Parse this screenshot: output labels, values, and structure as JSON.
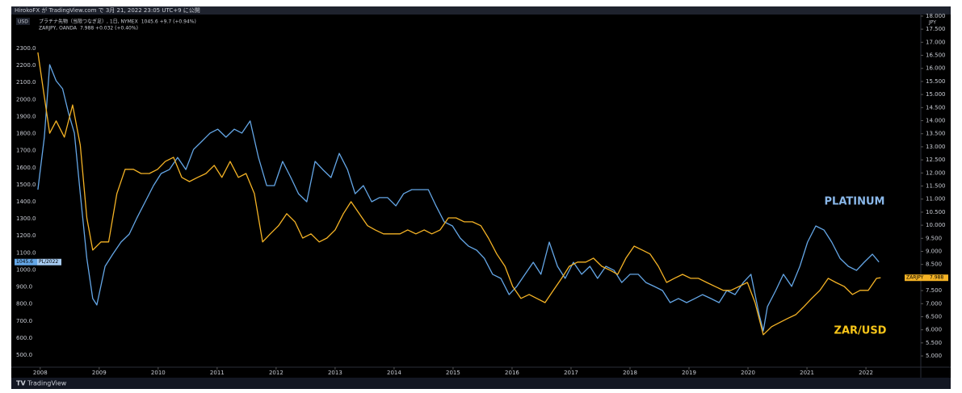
{
  "header": "HirokoFX が TradingView.com で 3月 21, 2022 23:05 UTC+9 に公開",
  "footer": "TradingView",
  "chart_data": {
    "type": "line",
    "y_unit": "USD",
    "y2_unit": "JPY",
    "annotations": [
      {
        "text": "PLATINUM",
        "series": 0
      },
      {
        "text": "ZAR/USD",
        "series": 1
      }
    ],
    "legend_values": [
      "1045.6 +9.7 (+0.94%)",
      "7.988 +0.032 (+0.40%)"
    ],
    "price_tags": [
      {
        "value_label": "1045.6",
        "symbol": "PL/2022"
      },
      {
        "value_label": "7.988",
        "symbol": "ZARJPY"
      }
    ],
    "xlim": [
      2007.51,
      2022.93
    ],
    "xticks": [
      2008,
      2009,
      2010,
      2011,
      2012,
      2013,
      2014,
      2015,
      2016,
      2017,
      2018,
      2019,
      2020,
      2021,
      2022
    ],
    "ylim": [
      429,
      2499
    ],
    "yticks": [
      {
        "value": 500,
        "label": "500.0"
      },
      {
        "value": 600,
        "label": "600.0"
      },
      {
        "value": 700,
        "label": "700.0"
      },
      {
        "value": 800,
        "label": "800.0"
      },
      {
        "value": 900,
        "label": "900.0"
      },
      {
        "value": 1000,
        "label": "1000.0"
      },
      {
        "value": 1100,
        "label": "1100.0"
      },
      {
        "value": 1200,
        "label": "1200.0"
      },
      {
        "value": 1300,
        "label": "1300.0"
      },
      {
        "value": 1400,
        "label": "1400.0"
      },
      {
        "value": 1500,
        "label": "1500.0"
      },
      {
        "value": 1600,
        "label": "1600.0"
      },
      {
        "value": 1700,
        "label": "1700.0"
      },
      {
        "value": 1800,
        "label": "1800.0"
      },
      {
        "value": 1900,
        "label": "1900.0"
      },
      {
        "value": 2000,
        "label": "2000.0"
      },
      {
        "value": 2100,
        "label": "2100.0"
      },
      {
        "value": 2200,
        "label": "2200.0"
      },
      {
        "value": 2300,
        "label": "2300.0"
      }
    ],
    "y2lim": [
      4.57,
      18.06
    ],
    "y2ticks": [
      {
        "value": 5,
        "label": "5.000"
      },
      {
        "value": 5.5,
        "label": "5.500"
      },
      {
        "value": 6,
        "label": "6.000"
      },
      {
        "value": 6.5,
        "label": "6.500"
      },
      {
        "value": 7,
        "label": "7.000"
      },
      {
        "value": 7.5,
        "label": "7.500"
      },
      {
        "value": 8,
        "label": "8.000"
      },
      {
        "value": 8.5,
        "label": "8.500"
      },
      {
        "value": 9,
        "label": "9.000"
      },
      {
        "value": 9.5,
        "label": "9.500"
      },
      {
        "value": 10,
        "label": "10.000"
      },
      {
        "value": 10.5,
        "label": "10.500"
      },
      {
        "value": 11,
        "label": "11.000"
      },
      {
        "value": 11.5,
        "label": "11.500"
      },
      {
        "value": 12,
        "label": "12.000"
      },
      {
        "value": 12.5,
        "label": "12.500"
      },
      {
        "value": 13,
        "label": "13.000"
      },
      {
        "value": 13.5,
        "label": "13.500"
      },
      {
        "value": 14,
        "label": "14.000"
      },
      {
        "value": 14.5,
        "label": "14.500"
      },
      {
        "value": 15,
        "label": "15.000"
      },
      {
        "value": 15.5,
        "label": "15.500"
      },
      {
        "value": 16,
        "label": "16.000"
      },
      {
        "value": 16.5,
        "label": "16.500"
      },
      {
        "value": 17,
        "label": "17.000"
      },
      {
        "value": 17.5,
        "label": "17.500"
      },
      {
        "value": 18,
        "label": "18.000"
      }
    ],
    "grid": false,
    "series": [
      {
        "name": "プラチナ先物（当限つなぎ足）, 1日, NYMEX",
        "color": "#64a6e6",
        "axis": "y",
        "x": [
          2007.96,
          2008.07,
          2008.16,
          2008.27,
          2008.38,
          2008.48,
          2008.58,
          2008.68,
          2008.79,
          2008.89,
          2008.96,
          2009.1,
          2009.23,
          2009.37,
          2009.51,
          2009.64,
          2009.78,
          2009.92,
          2010.05,
          2010.19,
          2010.33,
          2010.47,
          2010.6,
          2010.74,
          2010.88,
          2011.01,
          2011.15,
          2011.29,
          2011.42,
          2011.56,
          2011.7,
          2011.84,
          2011.97,
          2012.11,
          2012.25,
          2012.38,
          2012.52,
          2012.66,
          2012.79,
          2012.93,
          2013.07,
          2013.21,
          2013.34,
          2013.48,
          2013.62,
          2013.75,
          2013.89,
          2014.03,
          2014.16,
          2014.3,
          2014.44,
          2014.58,
          2014.71,
          2014.85,
          2014.99,
          2015.12,
          2015.26,
          2015.4,
          2015.53,
          2015.67,
          2015.81,
          2015.95,
          2016.08,
          2016.22,
          2016.36,
          2016.49,
          2016.63,
          2016.77,
          2016.9,
          2017.04,
          2017.18,
          2017.32,
          2017.45,
          2017.59,
          2017.73,
          2017.86,
          2018.0,
          2018.14,
          2018.27,
          2018.41,
          2018.55,
          2018.68,
          2018.82,
          2018.96,
          2019.1,
          2019.23,
          2019.37,
          2019.51,
          2019.64,
          2019.78,
          2019.92,
          2020.05,
          2020.19,
          2020.26,
          2020.33,
          2020.47,
          2020.6,
          2020.74,
          2020.88,
          2021.01,
          2021.15,
          2021.29,
          2021.42,
          2021.56,
          2021.7,
          2021.84,
          2021.97,
          2022.11,
          2022.22
        ],
        "values": [
          1471,
          1779,
          2205,
          2110,
          2063,
          1921,
          1803,
          1447,
          1068,
          832,
          794,
          1021,
          1092,
          1163,
          1210,
          1305,
          1400,
          1495,
          1566,
          1589,
          1660,
          1589,
          1707,
          1755,
          1803,
          1826,
          1779,
          1826,
          1803,
          1874,
          1660,
          1495,
          1495,
          1637,
          1542,
          1447,
          1400,
          1637,
          1589,
          1542,
          1684,
          1589,
          1447,
          1495,
          1400,
          1424,
          1424,
          1376,
          1447,
          1471,
          1471,
          1471,
          1376,
          1282,
          1258,
          1187,
          1140,
          1116,
          1068,
          974,
          950,
          855,
          903,
          974,
          1045,
          974,
          1163,
          1021,
          950,
          1045,
          974,
          1021,
          950,
          1021,
          997,
          926,
          974,
          974,
          926,
          903,
          879,
          808,
          832,
          808,
          832,
          855,
          832,
          808,
          879,
          855,
          926,
          974,
          737,
          642,
          784,
          879,
          974,
          903,
          1021,
          1163,
          1258,
          1234,
          1163,
          1068,
          1021,
          997,
          1045,
          1092,
          1046
        ]
      },
      {
        "name": "ZARJPY, OANDA",
        "color": "#f5b325",
        "axis": "y2",
        "x": [
          2007.96,
          2008.07,
          2008.16,
          2008.27,
          2008.41,
          2008.55,
          2008.68,
          2008.79,
          2008.89,
          2009.03,
          2009.16,
          2009.3,
          2009.44,
          2009.58,
          2009.71,
          2009.85,
          2009.99,
          2010.12,
          2010.26,
          2010.4,
          2010.53,
          2010.67,
          2010.81,
          2010.95,
          2011.08,
          2011.22,
          2011.36,
          2011.49,
          2011.63,
          2011.77,
          2011.9,
          2012.04,
          2012.18,
          2012.32,
          2012.45,
          2012.59,
          2012.73,
          2012.86,
          2013.0,
          2013.14,
          2013.27,
          2013.41,
          2013.55,
          2013.68,
          2013.82,
          2013.96,
          2014.1,
          2014.23,
          2014.37,
          2014.51,
          2014.64,
          2014.78,
          2014.92,
          2015.05,
          2015.19,
          2015.33,
          2015.47,
          2015.6,
          2015.74,
          2015.88,
          2016.01,
          2016.15,
          2016.29,
          2016.42,
          2016.56,
          2016.7,
          2016.84,
          2016.97,
          2017.11,
          2017.25,
          2017.38,
          2017.52,
          2017.66,
          2017.79,
          2017.93,
          2018.07,
          2018.21,
          2018.34,
          2018.48,
          2018.62,
          2018.75,
          2018.89,
          2019.03,
          2019.16,
          2019.3,
          2019.44,
          2019.58,
          2019.71,
          2019.85,
          2019.99,
          2020.12,
          2020.26,
          2020.4,
          2020.53,
          2020.67,
          2020.81,
          2020.95,
          2021.08,
          2021.22,
          2021.36,
          2021.49,
          2021.63,
          2021.77,
          2021.9,
          2022.04,
          2022.18,
          2022.25
        ],
        "values": [
          16.61,
          14.91,
          13.52,
          13.99,
          13.37,
          14.6,
          13.06,
          10.28,
          9.05,
          9.36,
          9.36,
          11.21,
          12.14,
          12.14,
          11.98,
          11.98,
          12.14,
          12.44,
          12.6,
          11.83,
          11.67,
          11.83,
          11.98,
          12.29,
          11.83,
          12.44,
          11.83,
          11.98,
          11.21,
          9.36,
          9.67,
          9.98,
          10.44,
          10.13,
          9.51,
          9.67,
          9.36,
          9.51,
          9.82,
          10.44,
          10.9,
          10.44,
          9.98,
          9.82,
          9.67,
          9.67,
          9.67,
          9.82,
          9.67,
          9.82,
          9.67,
          9.82,
          10.28,
          10.28,
          10.13,
          10.13,
          9.98,
          9.51,
          8.9,
          8.43,
          7.66,
          7.2,
          7.35,
          7.2,
          7.04,
          7.51,
          7.97,
          8.43,
          8.59,
          8.59,
          8.74,
          8.43,
          8.28,
          8.12,
          8.74,
          9.2,
          9.05,
          8.9,
          8.43,
          7.81,
          7.97,
          8.12,
          7.97,
          7.97,
          7.81,
          7.66,
          7.51,
          7.51,
          7.66,
          7.81,
          7.04,
          5.81,
          6.12,
          6.27,
          6.43,
          6.58,
          6.89,
          7.2,
          7.51,
          7.97,
          7.81,
          7.66,
          7.35,
          7.51,
          7.51,
          7.97,
          7.99
        ]
      }
    ]
  }
}
